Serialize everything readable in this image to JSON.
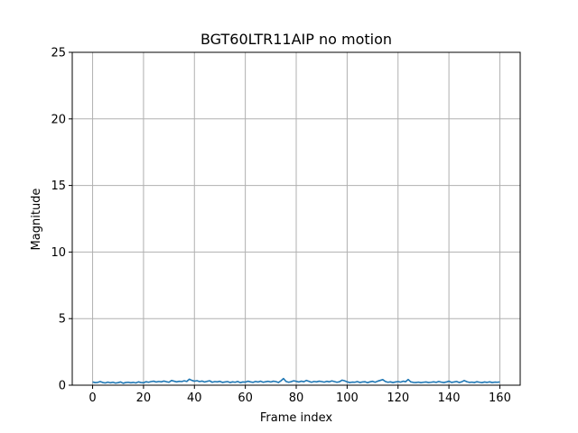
{
  "chart_data": {
    "type": "line",
    "title": "BGT60LTR11AIP no motion",
    "xlabel": "Frame index",
    "ylabel": "Magnitude",
    "xlim": [
      -8,
      168
    ],
    "ylim": [
      0,
      25
    ],
    "xticks": [
      0,
      20,
      40,
      60,
      80,
      100,
      120,
      140,
      160
    ],
    "yticks": [
      0,
      5,
      10,
      15,
      20,
      25
    ],
    "grid": true,
    "series": [
      {
        "color": "#1f77b4",
        "x": [
          0,
          1,
          2,
          3,
          4,
          5,
          6,
          7,
          8,
          9,
          10,
          11,
          12,
          13,
          14,
          15,
          16,
          17,
          18,
          19,
          20,
          21,
          22,
          23,
          24,
          25,
          26,
          27,
          28,
          29,
          30,
          31,
          32,
          33,
          34,
          35,
          36,
          37,
          38,
          39,
          40,
          41,
          42,
          43,
          44,
          45,
          46,
          47,
          48,
          49,
          50,
          51,
          52,
          53,
          54,
          55,
          56,
          57,
          58,
          59,
          60,
          61,
          62,
          63,
          64,
          65,
          66,
          67,
          68,
          69,
          70,
          71,
          72,
          73,
          74,
          75,
          76,
          77,
          78,
          79,
          80,
          81,
          82,
          83,
          84,
          85,
          86,
          87,
          88,
          89,
          90,
          91,
          92,
          93,
          94,
          95,
          96,
          97,
          98,
          99,
          100,
          101,
          102,
          103,
          104,
          105,
          106,
          107,
          108,
          109,
          110,
          111,
          112,
          113,
          114,
          115,
          116,
          117,
          118,
          119,
          120,
          121,
          122,
          123,
          124,
          125,
          126,
          127,
          128,
          129,
          130,
          131,
          132,
          133,
          134,
          135,
          136,
          137,
          138,
          139,
          140,
          141,
          142,
          143,
          144,
          145,
          146,
          147,
          148,
          149,
          150,
          151,
          152,
          153,
          154,
          155,
          156,
          157,
          158,
          159,
          160
        ],
        "y": [
          0.24,
          0.19,
          0.21,
          0.27,
          0.2,
          0.17,
          0.23,
          0.18,
          0.22,
          0.16,
          0.19,
          0.24,
          0.15,
          0.2,
          0.22,
          0.18,
          0.21,
          0.17,
          0.25,
          0.2,
          0.18,
          0.26,
          0.22,
          0.27,
          0.3,
          0.24,
          0.28,
          0.25,
          0.31,
          0.26,
          0.22,
          0.35,
          0.3,
          0.25,
          0.29,
          0.27,
          0.33,
          0.28,
          0.45,
          0.36,
          0.3,
          0.34,
          0.27,
          0.31,
          0.24,
          0.29,
          0.33,
          0.22,
          0.27,
          0.25,
          0.29,
          0.21,
          0.24,
          0.27,
          0.2,
          0.25,
          0.22,
          0.28,
          0.19,
          0.24,
          0.23,
          0.3,
          0.25,
          0.21,
          0.28,
          0.24,
          0.3,
          0.22,
          0.26,
          0.29,
          0.24,
          0.3,
          0.27,
          0.2,
          0.33,
          0.5,
          0.28,
          0.22,
          0.26,
          0.33,
          0.29,
          0.24,
          0.3,
          0.26,
          0.36,
          0.29,
          0.22,
          0.28,
          0.25,
          0.3,
          0.27,
          0.23,
          0.29,
          0.25,
          0.32,
          0.27,
          0.22,
          0.26,
          0.38,
          0.33,
          0.25,
          0.2,
          0.23,
          0.22,
          0.27,
          0.2,
          0.24,
          0.26,
          0.19,
          0.25,
          0.29,
          0.22,
          0.3,
          0.36,
          0.42,
          0.28,
          0.22,
          0.25,
          0.2,
          0.24,
          0.27,
          0.23,
          0.3,
          0.26,
          0.43,
          0.25,
          0.21,
          0.2,
          0.23,
          0.19,
          0.22,
          0.24,
          0.2,
          0.22,
          0.25,
          0.21,
          0.28,
          0.23,
          0.2,
          0.24,
          0.3,
          0.21,
          0.24,
          0.28,
          0.2,
          0.25,
          0.35,
          0.26,
          0.21,
          0.23,
          0.2,
          0.26,
          0.22,
          0.19,
          0.24,
          0.21,
          0.25,
          0.2,
          0.23,
          0.22,
          0.24
        ]
      }
    ]
  }
}
